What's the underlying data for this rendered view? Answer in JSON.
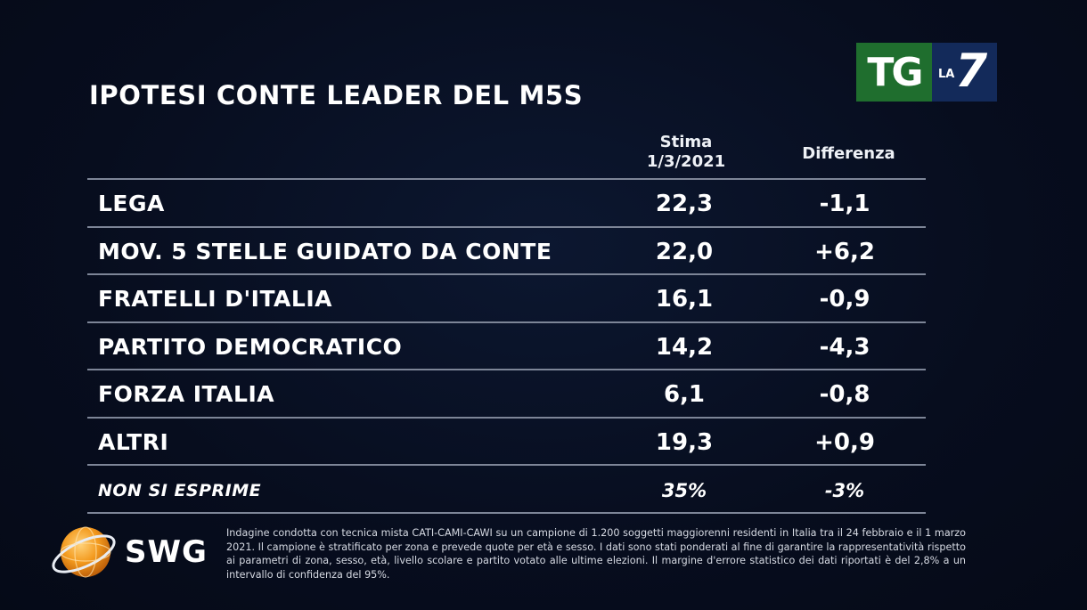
{
  "chart_data": {
    "type": "table",
    "title": "IPOTESI CONTE LEADER DEL M5S",
    "columns": [
      "Stima 1/3/2021",
      "Differenza"
    ],
    "column_headers": {
      "stima_line1": "Stima",
      "stima_line2": "1/3/2021",
      "differenza": "Differenza"
    },
    "rows": [
      {
        "label": "LEGA",
        "stima": "22,3",
        "differenza": "-1,1"
      },
      {
        "label": "MOV. 5 STELLE GUIDATO DA CONTE",
        "stima": "22,0",
        "differenza": "+6,2"
      },
      {
        "label": "FRATELLI D'ITALIA",
        "stima": "16,1",
        "differenza": "-0,9"
      },
      {
        "label": "PARTITO DEMOCRATICO",
        "stima": "14,2",
        "differenza": "-4,3"
      },
      {
        "label": "FORZA ITALIA",
        "stima": "6,1",
        "differenza": "-0,8"
      },
      {
        "label": "ALTRI",
        "stima": "19,3",
        "differenza": "+0,9"
      },
      {
        "label": "NON SI ESPRIME",
        "stima": "35%",
        "differenza": "-3%"
      }
    ],
    "numeric": {
      "stima": [
        22.3,
        22.0,
        16.1,
        14.2,
        6.1,
        19.3,
        35
      ],
      "differenza": [
        -1.1,
        6.2,
        -0.9,
        -4.3,
        -0.8,
        0.9,
        -3
      ]
    }
  },
  "broadcaster": {
    "tg": "TG",
    "la": "LA",
    "seven": "7",
    "colors": {
      "tg_bg": "#1f6e2e",
      "la7_bg": "#132a5a"
    }
  },
  "source": {
    "name": "SWG",
    "globe_color": "#f39a1e",
    "footnote": "Indagine condotta con tecnica mista CATI-CAMI-CAWI su un campione di 1.200 soggetti maggiorenni residenti in Italia tra il 24 febbraio e il 1 marzo 2021. Il campione è stratificato per zona e prevede quote per età e sesso. I dati sono stati ponderati al fine di garantire la rappresentatività rispetto ai parametri di zona, sesso, età, livello scolare e partito votato alle ultime elezioni. Il margine d'errore statistico dei dati riportati è del 2,8% a un intervallo di confidenza del 95%."
  },
  "colors": {
    "background": "#070d1e",
    "rule": "#7d8597",
    "text": "#ffffff"
  }
}
